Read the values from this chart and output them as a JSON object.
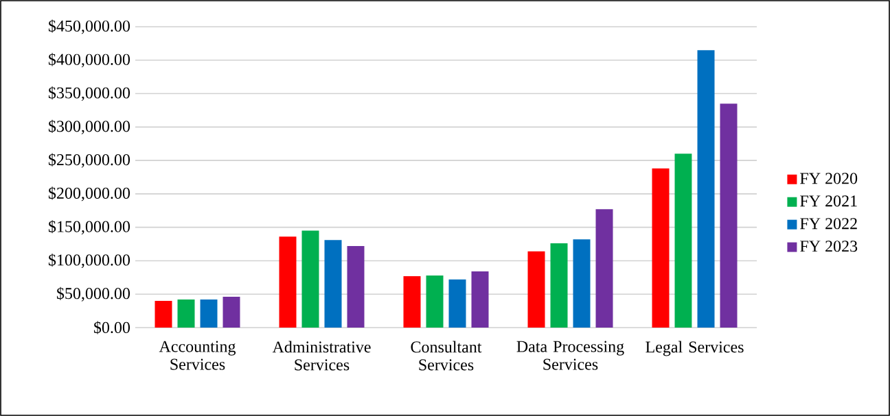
{
  "chart_data": {
    "type": "bar",
    "categories": [
      "Accounting Services",
      "Administrative Services",
      "Consultant Services",
      "Data Processing Services",
      "Legal Services"
    ],
    "series": [
      {
        "name": "FY 2020",
        "color": "#ff0000",
        "values": [
          40000,
          136000,
          77000,
          114000,
          238000
        ]
      },
      {
        "name": "FY 2021",
        "color": "#00b050",
        "values": [
          42000,
          145000,
          78000,
          126000,
          260000
        ]
      },
      {
        "name": "FY 2022",
        "color": "#0070c0",
        "values": [
          42000,
          131000,
          72000,
          132000,
          415000
        ]
      },
      {
        "name": "FY 2023",
        "color": "#7030a0",
        "values": [
          46000,
          122000,
          84000,
          177000,
          335000
        ]
      }
    ],
    "ylim": [
      0,
      450000
    ],
    "yticks": [
      {
        "value": 0,
        "label": "$0.00"
      },
      {
        "value": 50000,
        "label": "$50,000.00"
      },
      {
        "value": 100000,
        "label": "$100,000.00"
      },
      {
        "value": 150000,
        "label": "$150,000.00"
      },
      {
        "value": 200000,
        "label": "$200,000.00"
      },
      {
        "value": 250000,
        "label": "$250,000.00"
      },
      {
        "value": 300000,
        "label": "$300,000.00"
      },
      {
        "value": 350000,
        "label": "$350,000.00"
      },
      {
        "value": 400000,
        "label": "$400,000.00"
      },
      {
        "value": 450000,
        "label": "$450,000.00"
      }
    ],
    "grid": "y",
    "legend": "right"
  }
}
